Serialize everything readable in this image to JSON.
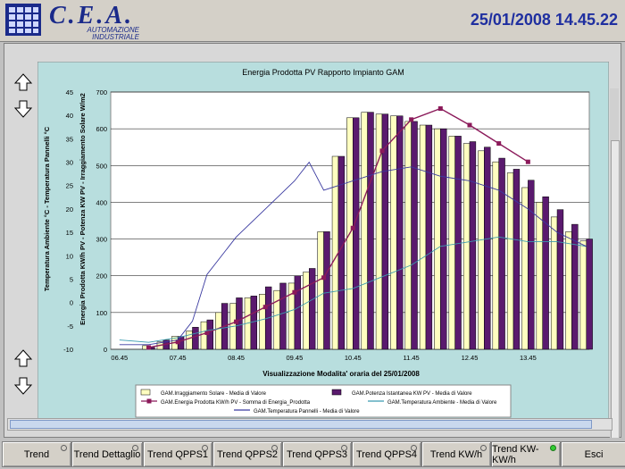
{
  "header": {
    "logo_title": "C.E.A.",
    "logo_line1": "AUTOMAZIONE",
    "logo_line2": "INDUSTRIALE",
    "datetime": "25/01/2008 14.45.22"
  },
  "colors": {
    "bar_irr": "#ffffc0",
    "bar_pot": "#5a1a6e",
    "energy_line": "#8b1a5a",
    "temp_amb": "#3a9bb0",
    "temp_pan": "#3a3aa0",
    "plot_bg": "#ffffff",
    "chart_bg": "#b8dede"
  },
  "chart_data": {
    "type": "bar",
    "title": "Energia Prodotta PV Rapporto Impianto GAM",
    "xlabel": "Visualizzazione Modalita' oraria del 25/01/2008",
    "ylabel_left": "Temperatura Ambiente °C - Temperatura Pannelli °C",
    "ylabel_right": "Energia Prodotta KW/h PV - Potenza KW PV - Irraggiamento Solare W/m2",
    "y_left_ticks": [
      "45",
      "40",
      "35",
      "30",
      "25",
      "20",
      "15",
      "10",
      "5",
      "0",
      "-5",
      "-10"
    ],
    "y_right_ticks": [
      "700",
      "600",
      "500",
      "400",
      "300",
      "200",
      "100",
      "0"
    ],
    "y_left_range": [
      -10,
      45
    ],
    "y_right_range": [
      0,
      700
    ],
    "x_tick_labels": [
      "06.45",
      "07.45",
      "08.45",
      "09.45",
      "10.45",
      "11.45",
      "12.45",
      "13.45"
    ],
    "x_range": [
      6.6,
      14.8
    ],
    "time_hours": [
      7.25,
      7.5,
      7.75,
      8,
      8.25,
      8.5,
      8.75,
      9,
      9.25,
      9.5,
      9.75,
      10,
      10.25,
      10.5,
      10.75,
      11,
      11.25,
      11.5,
      11.75,
      12,
      12.25,
      12.5,
      12.75,
      13,
      13.25,
      13.5,
      13.75,
      14,
      14.25,
      14.5,
      14.75
    ],
    "series": [
      {
        "name": "GAM.Irraggiamento Solare - Media di Valore",
        "kind": "bar",
        "values": [
          10,
          20,
          35,
          50,
          75,
          100,
          125,
          140,
          150,
          160,
          180,
          210,
          320,
          525,
          630,
          645,
          640,
          635,
          620,
          610,
          600,
          580,
          560,
          540,
          510,
          480,
          440,
          400,
          360,
          320,
          295
        ]
      },
      {
        "name": "GAM.Potenza Istantanea KW PV - Media di Valore",
        "kind": "bar",
        "values": [
          5,
          25,
          35,
          60,
          80,
          125,
          140,
          145,
          170,
          180,
          200,
          220,
          320,
          525,
          630,
          645,
          640,
          635,
          620,
          610,
          600,
          580,
          565,
          550,
          520,
          490,
          460,
          415,
          380,
          340,
          300
        ]
      },
      {
        "name": "GAM.Energia Prodotta KW/h PV - Somma di Energia_Prodotta",
        "kind": "line",
        "x": [
          7.25,
          7.75,
          8.25,
          8.75,
          9.25,
          9.75,
          10.25,
          10.75,
          11.25,
          11.75,
          12.25,
          12.75,
          13.25,
          13.75
        ],
        "values": [
          5,
          20,
          45,
          75,
          115,
          155,
          195,
          330,
          540,
          625,
          655,
          610,
          560,
          510
        ]
      },
      {
        "name": "GAM.Temperatura Ambiente - Media di Valore",
        "kind": "line",
        "x": [
          6.75,
          7.25,
          7.75,
          8.25,
          8.75,
          9.25,
          9.75,
          10.25,
          10.75,
          11.25,
          11.75,
          12.25,
          12.75,
          13.25,
          13.75,
          14.25,
          14.75
        ],
        "values": [
          -8,
          -8.5,
          -7.5,
          -6,
          -5,
          -3.5,
          -1.5,
          2,
          3,
          5.5,
          8,
          12,
          13,
          14,
          13,
          13,
          12
        ]
      },
      {
        "name": "GAM.Temperatura Pannelli - Media di Valore",
        "kind": "line",
        "x": [
          6.75,
          7.25,
          7.75,
          8,
          8.25,
          8.75,
          9.25,
          9.75,
          10,
          10.25,
          10.75,
          11.25,
          11.75,
          12.25,
          12.75,
          13.25,
          13.75,
          14.25,
          14.75
        ],
        "values": [
          -9,
          -9,
          -8,
          -4,
          6,
          14,
          20,
          26,
          30,
          24,
          26,
          28,
          29,
          27,
          26,
          24,
          20,
          15,
          12
        ]
      }
    ]
  },
  "footer": {
    "buttons": [
      {
        "label": "Trend",
        "led": false
      },
      {
        "label": "Trend Dettaglio",
        "led": false
      },
      {
        "label": "Trend QPPS1",
        "led": false
      },
      {
        "label": "Trend QPPS2",
        "led": false
      },
      {
        "label": "Trend QPPS3",
        "led": false
      },
      {
        "label": "Trend QPPS4",
        "led": false
      },
      {
        "label": "Trend KW/h",
        "led": false
      },
      {
        "label": "Trend KW-KW/h",
        "led": true
      },
      {
        "label": "Esci",
        "led": false
      }
    ]
  }
}
